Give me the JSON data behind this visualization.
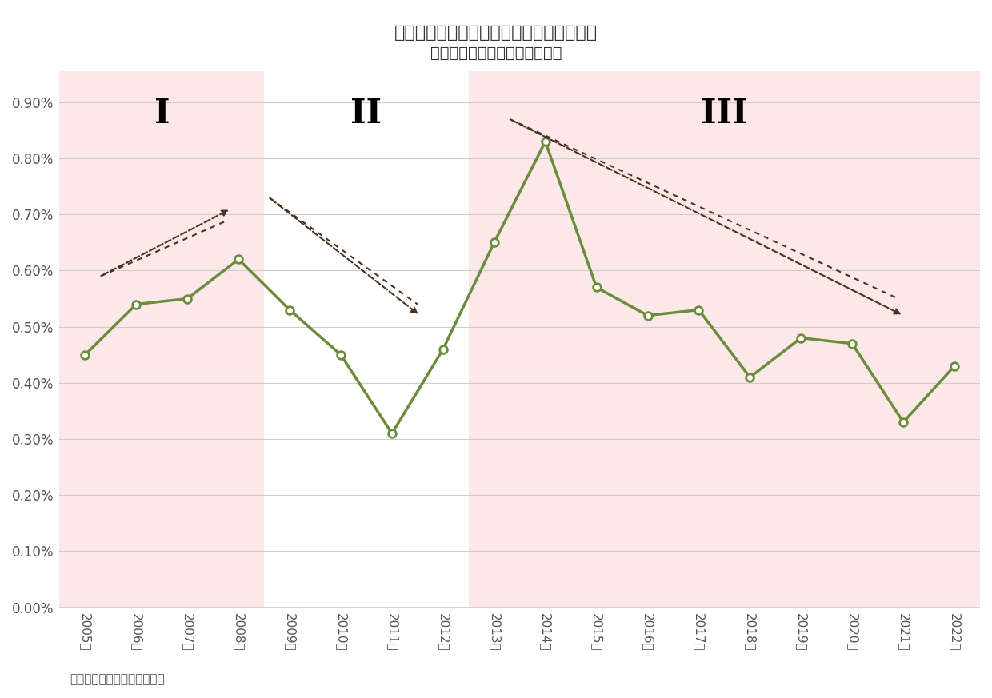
{
  "title_line1": "図表－７　「住居の専有面積」の回帰係数",
  "title_line2": "（１㎡増加あたりの価格変化）",
  "years": [
    2005,
    2006,
    2007,
    2008,
    2009,
    2010,
    2011,
    2012,
    2013,
    2014,
    2015,
    2016,
    2017,
    2018,
    2019,
    2020,
    2021,
    2022
  ],
  "values": [
    0.0045,
    0.0054,
    0.0055,
    0.0062,
    0.0053,
    0.0045,
    0.0031,
    0.0046,
    0.0065,
    0.0083,
    0.0057,
    0.0052,
    0.0053,
    0.0041,
    0.0048,
    0.0047,
    0.0033,
    0.0043
  ],
  "line_color": "#6b8c3a",
  "marker_color": "#6b8c3a",
  "marker_face": "white",
  "bg_color": "#ffffff",
  "shaded_color": "#fce8e8",
  "grid_color": "#cccccc",
  "tick_label_color": "#555555",
  "title_color": "#333333",
  "arrow_color": "#4a3020",
  "source_text": "（出所）ニッセイ基礎研究所",
  "phase1_label": "I",
  "phase2_label": "II",
  "phase3_label": "III",
  "ylim_min": 0.0,
  "ylim_max": 0.00955,
  "yticks": [
    0.0,
    0.001,
    0.002,
    0.003,
    0.004,
    0.005,
    0.006,
    0.007,
    0.008,
    0.009
  ]
}
